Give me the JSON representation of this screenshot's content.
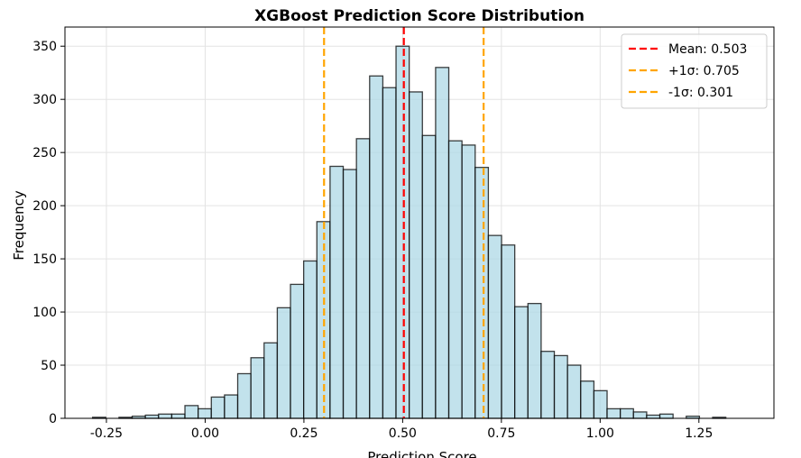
{
  "chart_data": {
    "type": "bar",
    "title": "XGBoost Prediction Score Distribution",
    "xlabel": "Prediction Score",
    "ylabel": "Frequency",
    "xlim": [
      -0.355,
      1.44
    ],
    "ylim": [
      0,
      368
    ],
    "xticks": [
      -0.25,
      0.0,
      0.25,
      0.5,
      0.75,
      1.0,
      1.25
    ],
    "xtick_labels": [
      "-0.25",
      "0.00",
      "0.25",
      "0.50",
      "0.75",
      "1.00",
      "1.25"
    ],
    "yticks": [
      0,
      50,
      100,
      150,
      200,
      250,
      300,
      350
    ],
    "ytick_labels": [
      "0",
      "50",
      "100",
      "150",
      "200",
      "250",
      "300",
      "350"
    ],
    "grid": true,
    "bin_edges": [
      -0.285,
      -0.2516,
      -0.2182,
      -0.1848,
      -0.1514,
      -0.118,
      -0.0846,
      -0.0512,
      -0.0178,
      0.0156,
      0.049,
      0.0824,
      0.1158,
      0.1492,
      0.1826,
      0.216,
      0.2494,
      0.2828,
      0.3162,
      0.3496,
      0.383,
      0.4164,
      0.4498,
      0.4832,
      0.5166,
      0.55,
      0.5834,
      0.6168,
      0.6502,
      0.6836,
      0.717,
      0.7504,
      0.7838,
      0.8172,
      0.8506,
      0.884,
      0.9174,
      0.9508,
      0.9842,
      1.0176,
      1.051,
      1.0844,
      1.1178,
      1.1512,
      1.1846,
      1.218,
      1.2514,
      1.2848,
      1.3182,
      1.3516
    ],
    "counts": [
      1,
      0,
      1,
      2,
      3,
      4,
      4,
      12,
      9,
      20,
      22,
      42,
      57,
      71,
      104,
      126,
      148,
      185,
      237,
      234,
      263,
      322,
      311,
      350,
      307,
      266,
      330,
      261,
      257,
      236,
      172,
      163,
      105,
      108,
      63,
      59,
      50,
      35,
      26,
      9,
      9,
      6,
      3,
      4,
      0,
      2,
      0,
      1,
      0,
      1
    ],
    "bar_color": "#ADD8E6",
    "bar_edge_color": "#000000",
    "lines": [
      {
        "label": "Mean: 0.503",
        "x": 0.503,
        "color": "#ff0000"
      },
      {
        "label": "+1σ: 0.705",
        "x": 0.705,
        "color": "#ffa500"
      },
      {
        "label": "-1σ: 0.301",
        "x": 0.301,
        "color": "#ffa500"
      }
    ],
    "legend_position": "top-right"
  }
}
